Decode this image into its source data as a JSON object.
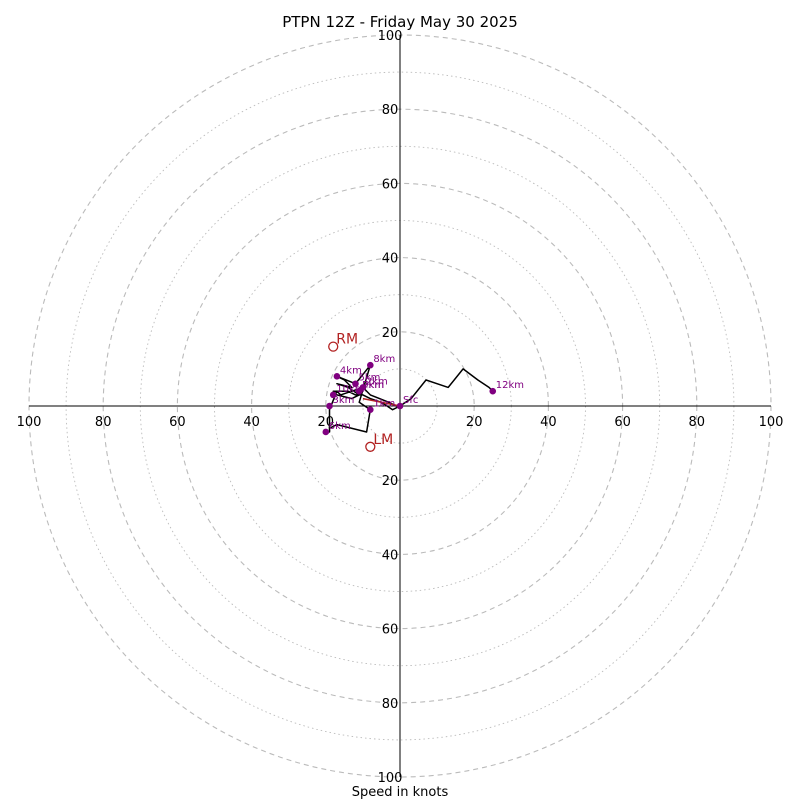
{
  "chart_data": {
    "type": "hodograph",
    "title": "PTPN 12Z - Friday May 30 2025",
    "xlabel": "Speed in knots",
    "ring_labels": [
      "20",
      "40",
      "60",
      "80",
      "100"
    ],
    "axis_tick_labels": [
      "100",
      "80",
      "60",
      "40",
      "20",
      "20",
      "40",
      "60",
      "80",
      "100"
    ],
    "max_speed": 100,
    "ring_major_step": 20,
    "ring_minor_step": 10,
    "colors": {
      "trace": "#000000",
      "level_marker": "#800080",
      "storm_motion": "#b22222",
      "grid": "#bbbbbb"
    },
    "trace": [
      [
        0,
        0
      ],
      [
        -2,
        -1
      ],
      [
        -5,
        1
      ],
      [
        -8,
        2
      ],
      [
        -10,
        3
      ],
      [
        -12,
        3
      ],
      [
        -14,
        4
      ],
      [
        -16,
        4
      ],
      [
        -18,
        4
      ],
      [
        -17,
        3
      ],
      [
        -13,
        2
      ],
      [
        -11,
        3
      ],
      [
        -14,
        5
      ],
      [
        -17,
        6
      ],
      [
        -13,
        5
      ],
      [
        -15,
        7
      ],
      [
        -17,
        8
      ],
      [
        -12,
        6
      ],
      [
        -8,
        11
      ],
      [
        -11,
        1
      ],
      [
        -8,
        -1
      ],
      [
        -9,
        -7
      ],
      [
        -17,
        -5
      ],
      [
        -19,
        -6
      ],
      [
        -19,
        -7
      ],
      [
        -19,
        -1
      ],
      [
        -17,
        4
      ],
      [
        -16,
        3
      ],
      [
        -10,
        5
      ],
      [
        -8,
        3
      ],
      [
        -3,
        1
      ],
      [
        -1,
        0
      ],
      [
        0,
        0
      ],
      [
        3,
        2
      ],
      [
        7,
        7
      ],
      [
        13,
        5
      ],
      [
        17,
        10
      ],
      [
        21,
        7
      ],
      [
        24,
        5
      ],
      [
        25,
        4
      ]
    ],
    "levels": [
      {
        "label": "Sfc",
        "u": 0,
        "v": 0
      },
      {
        "label": "1km",
        "u": -8,
        "v": -1
      },
      {
        "label": "2km",
        "u": -10,
        "v": 5
      },
      {
        "label": "3km",
        "u": -19,
        "v": 0
      },
      {
        "label": "4km",
        "u": -17,
        "v": 8
      },
      {
        "label": "5km",
        "u": -12,
        "v": 6
      },
      {
        "label": "6km",
        "u": -20,
        "v": -7
      },
      {
        "label": "7km",
        "u": -11,
        "v": 4
      },
      {
        "label": "8km",
        "u": -8,
        "v": 11
      },
      {
        "label": "9km",
        "u": -11,
        "v": 4
      },
      {
        "label": "10km",
        "u": -18,
        "v": 3
      },
      {
        "label": "12km",
        "u": 25,
        "v": 4
      }
    ],
    "shear_vector": {
      "from": [
        0,
        0
      ],
      "to": [
        -10,
        2
      ]
    },
    "storm_motion": [
      {
        "label": "RM",
        "u": -18,
        "v": 16
      },
      {
        "label": "LM",
        "u": -8,
        "v": -11
      }
    ]
  }
}
